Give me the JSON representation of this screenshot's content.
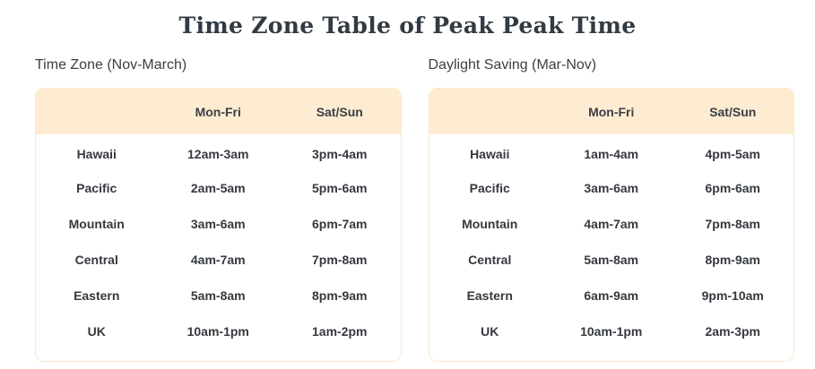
{
  "title": "Time Zone Table of Peak Peak Time",
  "colors": {
    "header_band_bg": "#fdecd2",
    "card_border": "#fbe8c9",
    "title_text": "#323a43",
    "body_text": "#35393f"
  },
  "tables": [
    {
      "caption": "Time Zone (Nov-March)",
      "col_headers": [
        "Mon-Fri",
        "Sat/Sun"
      ],
      "rows": [
        {
          "zone": "Hawaii",
          "mon_fri": "12am-3am",
          "sat_sun": "3pm-4am"
        },
        {
          "zone": "Pacific",
          "mon_fri": "2am-5am",
          "sat_sun": "5pm-6am"
        },
        {
          "zone": "Mountain",
          "mon_fri": "3am-6am",
          "sat_sun": "6pm-7am"
        },
        {
          "zone": "Central",
          "mon_fri": "4am-7am",
          "sat_sun": "7pm-8am"
        },
        {
          "zone": "Eastern",
          "mon_fri": "5am-8am",
          "sat_sun": "8pm-9am"
        },
        {
          "zone": "UK",
          "mon_fri": "10am-1pm",
          "sat_sun": "1am-2pm"
        }
      ]
    },
    {
      "caption": "Daylight Saving (Mar-Nov)",
      "col_headers": [
        "Mon-Fri",
        "Sat/Sun"
      ],
      "rows": [
        {
          "zone": "Hawaii",
          "mon_fri": "1am-4am",
          "sat_sun": "4pm-5am"
        },
        {
          "zone": "Pacific",
          "mon_fri": "3am-6am",
          "sat_sun": "6pm-6am"
        },
        {
          "zone": "Mountain",
          "mon_fri": "4am-7am",
          "sat_sun": "7pm-8am"
        },
        {
          "zone": "Central",
          "mon_fri": "5am-8am",
          "sat_sun": "8pm-9am"
        },
        {
          "zone": "Eastern",
          "mon_fri": "6am-9am",
          "sat_sun": "9pm-10am"
        },
        {
          "zone": "UK",
          "mon_fri": "10am-1pm",
          "sat_sun": "2am-3pm"
        }
      ]
    }
  ]
}
